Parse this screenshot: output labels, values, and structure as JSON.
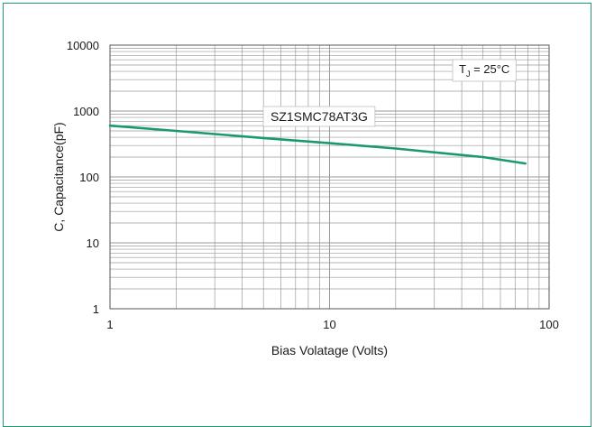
{
  "chart_data": {
    "type": "line",
    "title": "",
    "xlabel": "Bias Volatage (Volts)",
    "ylabel": "C, Capacitance(pF)",
    "x_scale": "log",
    "y_scale": "log",
    "xlim": [
      1,
      100
    ],
    "ylim": [
      1,
      10000
    ],
    "x_ticks": [
      "1",
      "10",
      "100"
    ],
    "y_ticks": [
      "1",
      "10",
      "100",
      "1000",
      "10000"
    ],
    "grid": true,
    "series": [
      {
        "name": "SZ1SMC78AT3G",
        "color": "#1a9a6c",
        "x": [
          1,
          2,
          5,
          10,
          20,
          50,
          78
        ],
        "y": [
          600,
          500,
          390,
          325,
          270,
          200,
          160
        ]
      }
    ],
    "annotations": {
      "device_label": "SZ1SMC78AT3G",
      "temp_prefix": "T",
      "temp_sub": "J",
      "temp_suffix": " = 25°C"
    }
  },
  "colors": {
    "frame": "#1f9a73",
    "line": "#1a9a6c",
    "grid": "#9a9a9a"
  }
}
